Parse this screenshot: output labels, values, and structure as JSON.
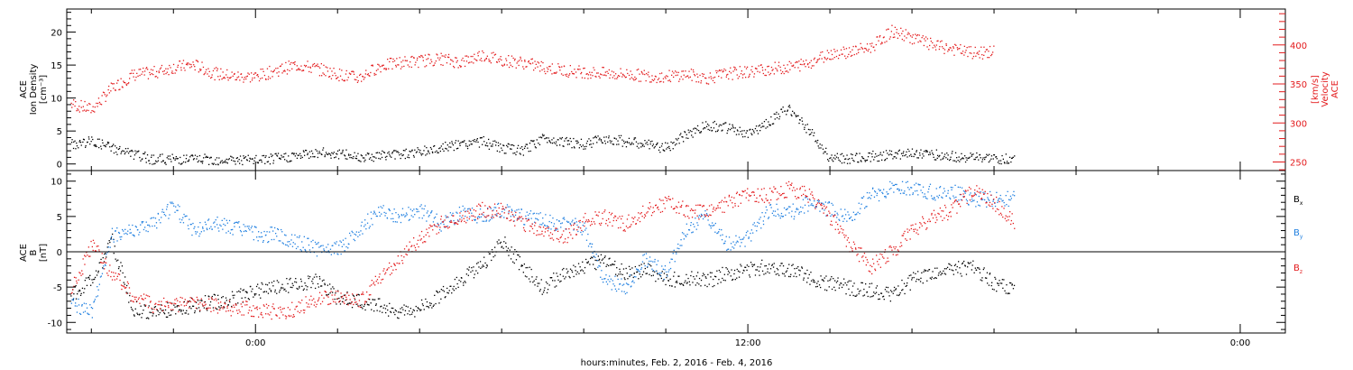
{
  "colors": {
    "black": "#000000",
    "blue": "#1f7fe0",
    "red": "#e31a1c",
    "axis": "#000000"
  },
  "xaxis": {
    "label": "hours:minutes, Feb.  2, 2016 - Feb.  4, 2016",
    "range_hours": [
      -4.6,
      25.1
    ],
    "major_ticks": [
      0,
      12,
      24
    ],
    "major_labels": [
      "0:00",
      "12:00",
      "0:00"
    ],
    "minor_step_hours": 2
  },
  "panels": [
    {
      "id": "density-velocity",
      "left_label": [
        "ACE",
        "Ion Density",
        "[cm⁻³]"
      ],
      "right_label": [
        "ACE",
        "Velocity",
        "[km/s]"
      ],
      "ylim_left": [
        -1,
        23.5
      ],
      "ylim_right": [
        239,
        446
      ],
      "left_ticks": [
        0,
        5,
        10,
        15,
        20
      ],
      "right_ticks": [
        250,
        300,
        350,
        400
      ]
    },
    {
      "id": "magnetic-field",
      "left_label": [
        "ACE",
        "B",
        "[nT]"
      ],
      "ylim": [
        -11.5,
        11.5
      ],
      "ticks": [
        -10,
        -5,
        0,
        5,
        10
      ],
      "legend": [
        "Bx",
        "By",
        "Bz"
      ]
    }
  ],
  "chart_data": [
    {
      "type": "scatter",
      "title": "",
      "xlabel": "hours:minutes, Feb.  2, 2016 - Feb.  4, 2016",
      "ylabel": "ACE Ion Density [cm⁻³]",
      "y2label": "ACE Velocity [km/s]",
      "xlim": [
        -4.6,
        25.1
      ],
      "ylim": [
        -1,
        23.5
      ],
      "y2lim": [
        239,
        446
      ],
      "grid": false,
      "series": [
        {
          "name": "ACE Ion Density",
          "axis": "left",
          "color": "black",
          "x": [
            -4.5,
            -4.0,
            -3.5,
            -3.0,
            -2.5,
            -2.0,
            -1.5,
            -1.0,
            -0.5,
            0.0,
            0.5,
            1.0,
            1.5,
            2.0,
            2.5,
            3.0,
            3.5,
            4.0,
            4.5,
            5.0,
            5.5,
            6.0,
            6.5,
            7.0,
            7.5,
            8.0,
            8.5,
            9.0,
            9.5,
            10.0,
            10.5,
            11.0,
            11.5,
            12.0,
            12.5,
            13.0,
            13.5,
            14.0,
            14.5,
            15.0,
            15.5,
            16.0,
            16.5,
            17.0,
            17.5,
            18.0,
            18.5,
            19.0,
            19.5,
            20.0,
            20.5,
            21.0,
            21.5,
            22.0,
            22.5,
            23.0,
            23.5,
            24.0,
            24.5,
            25.0
          ],
          "y": [
            3.0,
            3.5,
            2.5,
            1.5,
            0.8,
            0.8,
            0.8,
            0.7,
            0.7,
            0.6,
            0.9,
            1.3,
            1.8,
            1.6,
            1.2,
            1.3,
            1.6,
            1.9,
            2.5,
            3.0,
            3.5,
            2.5,
            2.0,
            4.0,
            3.5,
            3.0,
            4.0,
            3.5,
            3.0,
            2.5,
            4.5,
            6.0,
            5.5,
            4.5,
            6.5,
            8.5,
            5.0,
            1.0,
            0.8,
            1.2,
            1.5,
            1.8,
            1.5,
            1.2,
            1.0,
            0.8,
            0.8,
            null,
            null,
            null,
            null,
            null,
            null,
            null,
            null,
            null,
            null,
            null,
            null,
            null
          ]
        },
        {
          "name": "ACE Velocity",
          "axis": "right",
          "color": "red",
          "x": [
            -4.5,
            -4.0,
            -3.5,
            -3.0,
            -2.5,
            -2.0,
            -1.5,
            -1.0,
            -0.5,
            0.0,
            0.5,
            1.0,
            1.5,
            2.0,
            2.5,
            3.0,
            3.5,
            4.0,
            4.5,
            5.0,
            5.5,
            6.0,
            6.5,
            7.0,
            7.5,
            8.0,
            8.5,
            9.0,
            9.5,
            10.0,
            10.5,
            11.0,
            11.5,
            12.0,
            12.5,
            13.0,
            13.5,
            14.0,
            14.5,
            15.0,
            15.5,
            16.0,
            16.5,
            17.0,
            17.5,
            18.0,
            18.5,
            19.0,
            19.5,
            20.0,
            20.5,
            21.0,
            21.5,
            22.0,
            22.5,
            23.0,
            23.5,
            24.0,
            24.5,
            25.0
          ],
          "y": [
            325,
            318,
            345,
            362,
            365,
            372,
            375,
            364,
            360,
            360,
            368,
            375,
            370,
            363,
            358,
            373,
            378,
            380,
            383,
            378,
            388,
            381,
            378,
            372,
            368,
            366,
            364,
            363,
            361,
            360,
            363,
            358,
            364,
            366,
            370,
            372,
            378,
            390,
            392,
            398,
            418,
            410,
            400,
            395,
            390,
            392,
            null,
            null,
            null,
            null,
            null,
            null,
            null,
            null,
            null,
            null,
            null,
            null,
            null,
            null
          ]
        }
      ]
    },
    {
      "type": "scatter",
      "title": "",
      "xlabel": "hours:minutes, Feb.  2, 2016 - Feb.  4, 2016",
      "ylabel": "ACE B [nT]",
      "xlim": [
        -4.6,
        25.1
      ],
      "ylim": [
        -11.5,
        11.5
      ],
      "grid": false,
      "series": [
        {
          "name": "Bx",
          "color": "black",
          "x": [
            -4.5,
            -4.0,
            -3.5,
            -3.0,
            -2.5,
            -2.0,
            -1.5,
            -1.0,
            -0.5,
            0.0,
            0.5,
            1.0,
            1.5,
            2.0,
            2.5,
            3.0,
            3.5,
            4.0,
            4.5,
            5.0,
            5.5,
            6.0,
            6.5,
            7.0,
            7.5,
            8.0,
            8.5,
            9.0,
            9.5,
            10.0,
            10.5,
            11.0,
            11.5,
            12.0,
            12.5,
            13.0,
            13.5,
            14.0,
            14.5,
            15.0,
            15.5,
            16.0,
            16.5,
            17.0,
            17.5,
            18.0,
            18.5,
            19.0,
            19.5,
            20.0,
            20.5,
            21.0,
            21.5,
            22.0,
            22.5,
            23.0,
            23.5,
            24.0,
            24.5,
            25.0
          ],
          "y": [
            -6.0,
            -4.0,
            1.5,
            -8.0,
            -8.5,
            -8.0,
            -7.5,
            -7.0,
            -6.5,
            -5.5,
            -5.0,
            -4.5,
            -4.0,
            -6.5,
            -7.0,
            -7.5,
            -8.5,
            -8.0,
            -6.0,
            -4.0,
            -2.0,
            1.5,
            -2.0,
            -5.0,
            -3.0,
            -2.0,
            -1.0,
            -3.0,
            -2.5,
            -4.0,
            -3.5,
            -4.0,
            -3.0,
            -2.5,
            -2.0,
            -2.5,
            -3.5,
            -4.5,
            -5.0,
            -5.5,
            -6.0,
            -4.0,
            -3.0,
            -2.5,
            -2.0,
            -4.5,
            -5.5,
            null,
            null,
            null,
            null,
            null,
            null,
            null,
            null,
            null,
            null,
            null,
            null,
            null
          ]
        },
        {
          "name": "By",
          "color": "blue",
          "x": [
            -4.5,
            -4.0,
            -3.5,
            -3.0,
            -2.5,
            -2.0,
            -1.5,
            -1.0,
            -0.5,
            0.0,
            0.5,
            1.0,
            1.5,
            2.0,
            2.5,
            3.0,
            3.5,
            4.0,
            4.5,
            5.0,
            5.5,
            6.0,
            6.5,
            7.0,
            7.5,
            8.0,
            8.5,
            9.0,
            9.5,
            10.0,
            10.5,
            11.0,
            11.5,
            12.0,
            12.5,
            13.0,
            13.5,
            14.0,
            14.5,
            15.0,
            15.5,
            16.0,
            16.5,
            17.0,
            17.5,
            18.0,
            18.5,
            19.0,
            19.5,
            20.0,
            20.5,
            21.0,
            21.5,
            22.0,
            22.5,
            23.0,
            23.5,
            24.0,
            24.5,
            25.0
          ],
          "y": [
            -7.0,
            -8.5,
            2.5,
            3.0,
            4.0,
            6.5,
            3.0,
            4.0,
            3.5,
            2.5,
            2.5,
            1.5,
            0.5,
            0.5,
            3.0,
            6.0,
            5.0,
            6.0,
            4.0,
            5.5,
            5.0,
            6.0,
            5.0,
            4.5,
            4.0,
            3.5,
            -4.0,
            -5.0,
            -1.0,
            -3.0,
            3.0,
            5.0,
            1.0,
            2.0,
            6.0,
            5.5,
            7.0,
            6.0,
            5.0,
            8.0,
            9.0,
            9.0,
            8.5,
            8.5,
            7.5,
            7.5,
            7.5,
            null,
            null,
            null,
            null,
            null,
            null,
            null,
            null,
            null,
            null,
            null,
            null,
            null
          ]
        },
        {
          "name": "Bz",
          "color": "red",
          "x": [
            -4.5,
            -4.0,
            -3.5,
            -3.0,
            -2.5,
            -2.0,
            -1.5,
            -1.0,
            -0.5,
            0.0,
            0.5,
            1.0,
            1.5,
            2.0,
            2.5,
            3.0,
            3.5,
            4.0,
            4.5,
            5.0,
            5.5,
            6.0,
            6.5,
            7.0,
            7.5,
            8.0,
            8.5,
            9.0,
            9.5,
            10.0,
            10.5,
            11.0,
            11.5,
            12.0,
            12.5,
            13.0,
            13.5,
            14.0,
            14.5,
            15.0,
            15.5,
            16.0,
            16.5,
            17.0,
            17.5,
            18.0,
            18.5,
            19.0,
            19.5,
            20.0,
            20.5,
            21.0,
            21.5,
            22.0,
            22.5,
            23.0,
            23.5,
            24.0,
            24.5,
            25.0
          ],
          "y": [
            -5.5,
            1.0,
            -3.0,
            -6.0,
            -7.5,
            -7.5,
            -7.0,
            -7.5,
            -8.0,
            -8.0,
            -8.5,
            -8.0,
            -6.5,
            -6.5,
            -7.0,
            -4.0,
            -1.0,
            2.0,
            4.0,
            5.0,
            6.0,
            6.0,
            4.0,
            3.0,
            2.0,
            4.5,
            5.0,
            4.0,
            6.0,
            7.0,
            6.0,
            5.5,
            7.0,
            8.0,
            8.0,
            9.0,
            8.0,
            5.0,
            1.0,
            -2.0,
            0.0,
            3.0,
            5.0,
            6.0,
            9.0,
            7.0,
            4.0,
            null,
            null,
            null,
            null,
            null,
            null,
            null,
            null,
            null,
            null,
            null,
            null,
            null
          ]
        }
      ]
    }
  ]
}
